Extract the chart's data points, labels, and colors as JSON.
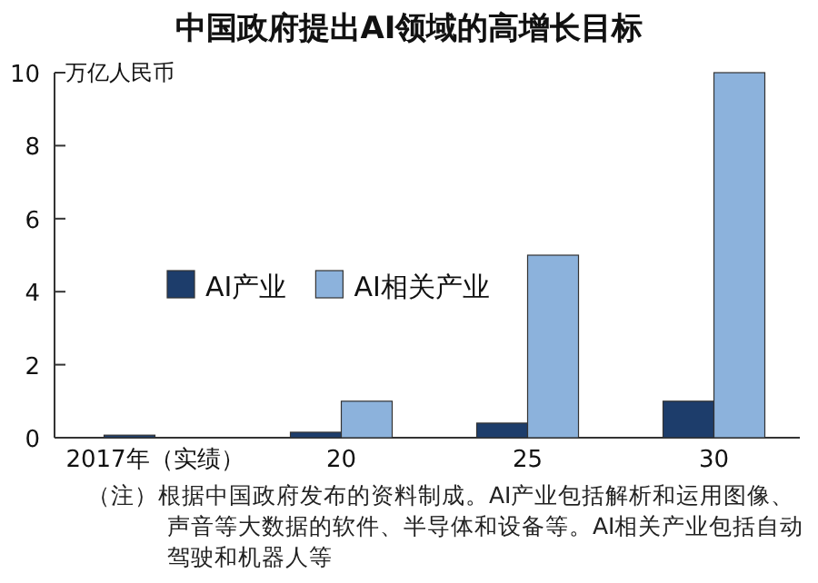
{
  "chart_data": {
    "type": "bar",
    "title": "中国政府提出AI领域的高增长目标",
    "ylabel": "万亿人民币",
    "categories": [
      "2017年（实绩）",
      "20",
      "25",
      "30"
    ],
    "series": [
      {
        "name": "AI产业",
        "color": "#1d3d6b",
        "values": [
          0.07,
          0.15,
          0.4,
          1.0
        ]
      },
      {
        "name": "AI相关产业",
        "color": "#8cb2dc",
        "values": [
          null,
          1,
          5,
          10
        ]
      }
    ],
    "ylim": [
      0,
      10
    ],
    "yticks": [
      0,
      2,
      4,
      6,
      8,
      10
    ],
    "legend": "left",
    "annotations": [
      "（注）根据中国政府发布的资料制成。AI产业包括解析和运用图像、声音等大数据的软件、半导体和设备等。AI相关产业包括自动驾驶和机器人等"
    ]
  }
}
